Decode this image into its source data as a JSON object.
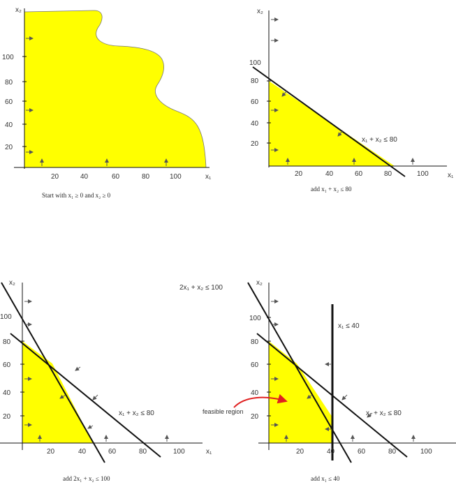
{
  "colors": {
    "feasible": "#ffff00",
    "line": "#111111",
    "arrow": "#555555",
    "annotation_arrow": "#e02020"
  },
  "panels": [
    {
      "id": "p1",
      "caption": "Start with x₁ ≥ 0 and x₂ ≥ 0",
      "y_axis_label": "x₂",
      "x_axis_label": "x₁",
      "y_ticks": [
        "100",
        "80",
        "60",
        "40",
        "20"
      ],
      "x_ticks": [
        "20",
        "40",
        "60",
        "80",
        "100"
      ]
    },
    {
      "id": "p2",
      "caption": "add x₁ + x₂ ≤ 80",
      "y_axis_label": "x₂",
      "x_axis_label": "x₁",
      "y_ticks": [
        "100",
        "80",
        "60",
        "40",
        "20"
      ],
      "x_ticks": [
        "20",
        "40",
        "60",
        "80",
        "100"
      ],
      "constraint_labels": [
        "x₁ + x₂ ≤ 80"
      ]
    },
    {
      "id": "p3",
      "caption": "add 2x₁ + x₂ ≤ 100",
      "y_axis_label": "x₂",
      "x_axis_label": "x₁",
      "y_ticks": [
        "100",
        "80",
        "60",
        "40",
        "20"
      ],
      "x_ticks": [
        "20",
        "40",
        "60",
        "80",
        "100"
      ],
      "constraint_labels": [
        "x₁ + x₂ ≤ 80"
      ]
    },
    {
      "id": "p4",
      "caption": "add x₁ ≤ 40",
      "y_axis_label": "x₂",
      "x_axis_label": "",
      "y_ticks": [
        "100",
        "80",
        "60",
        "40",
        "20"
      ],
      "x_ticks": [
        "20",
        "40",
        "60",
        "80",
        "100"
      ],
      "constraint_labels": [
        "2x₁ + x₂ ≤ 100",
        "x₁ ≤ 40",
        "x₁ + x₂ ≤ 80"
      ],
      "annotation": "feasible region"
    }
  ]
}
